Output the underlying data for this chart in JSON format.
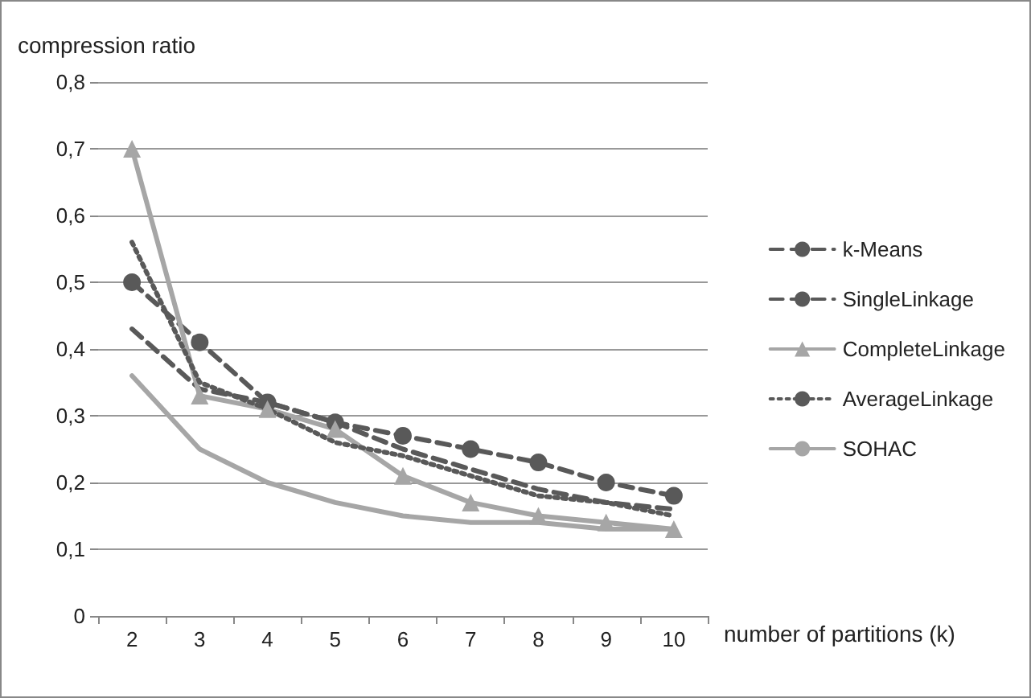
{
  "chart_data": {
    "type": "line",
    "xlabel": "number of partitions (k)",
    "ylabel": "compression ratio",
    "categories": [
      "2",
      "3",
      "4",
      "5",
      "6",
      "7",
      "8",
      "9",
      "10"
    ],
    "series": [
      {
        "name": "k-Means",
        "color": "#595959",
        "line_style": "dashed",
        "marker": "none",
        "values": [
          0.43,
          0.34,
          0.32,
          0.29,
          0.25,
          0.22,
          0.19,
          0.17,
          0.16
        ]
      },
      {
        "name": "SingleLinkage",
        "color": "#595959",
        "line_style": "dashed",
        "marker": "circle",
        "values": [
          0.5,
          0.41,
          0.32,
          0.29,
          0.27,
          0.25,
          0.23,
          0.2,
          0.18
        ]
      },
      {
        "name": "CompleteLinkage",
        "color": "#a6a6a6",
        "line_style": "solid",
        "marker": "triangle",
        "values": [
          0.7,
          0.33,
          0.31,
          0.28,
          0.21,
          0.17,
          0.15,
          0.14,
          0.13
        ]
      },
      {
        "name": "AverageLinkage",
        "color": "#595959",
        "line_style": "dotted",
        "marker": "none",
        "values": [
          0.56,
          0.35,
          0.31,
          0.26,
          0.24,
          0.21,
          0.18,
          0.17,
          0.15
        ]
      },
      {
        "name": "SOHAC",
        "color": "#a6a6a6",
        "line_style": "solid",
        "marker": "none",
        "values": [
          0.36,
          0.25,
          0.2,
          0.17,
          0.15,
          0.14,
          0.14,
          0.13,
          0.13
        ]
      }
    ],
    "ylim": [
      0,
      0.8
    ],
    "yticks": [
      {
        "value": 0,
        "label": "0"
      },
      {
        "value": 0.1,
        "label": "0,1"
      },
      {
        "value": 0.2,
        "label": "0,2"
      },
      {
        "value": 0.3,
        "label": "0,3"
      },
      {
        "value": 0.4,
        "label": "0,4"
      },
      {
        "value": 0.5,
        "label": "0,5"
      },
      {
        "value": 0.6,
        "label": "0,6"
      },
      {
        "value": 0.7,
        "label": "0,7"
      },
      {
        "value": 0.8,
        "label": "0,8"
      }
    ],
    "grid": "y",
    "legend": "right"
  }
}
